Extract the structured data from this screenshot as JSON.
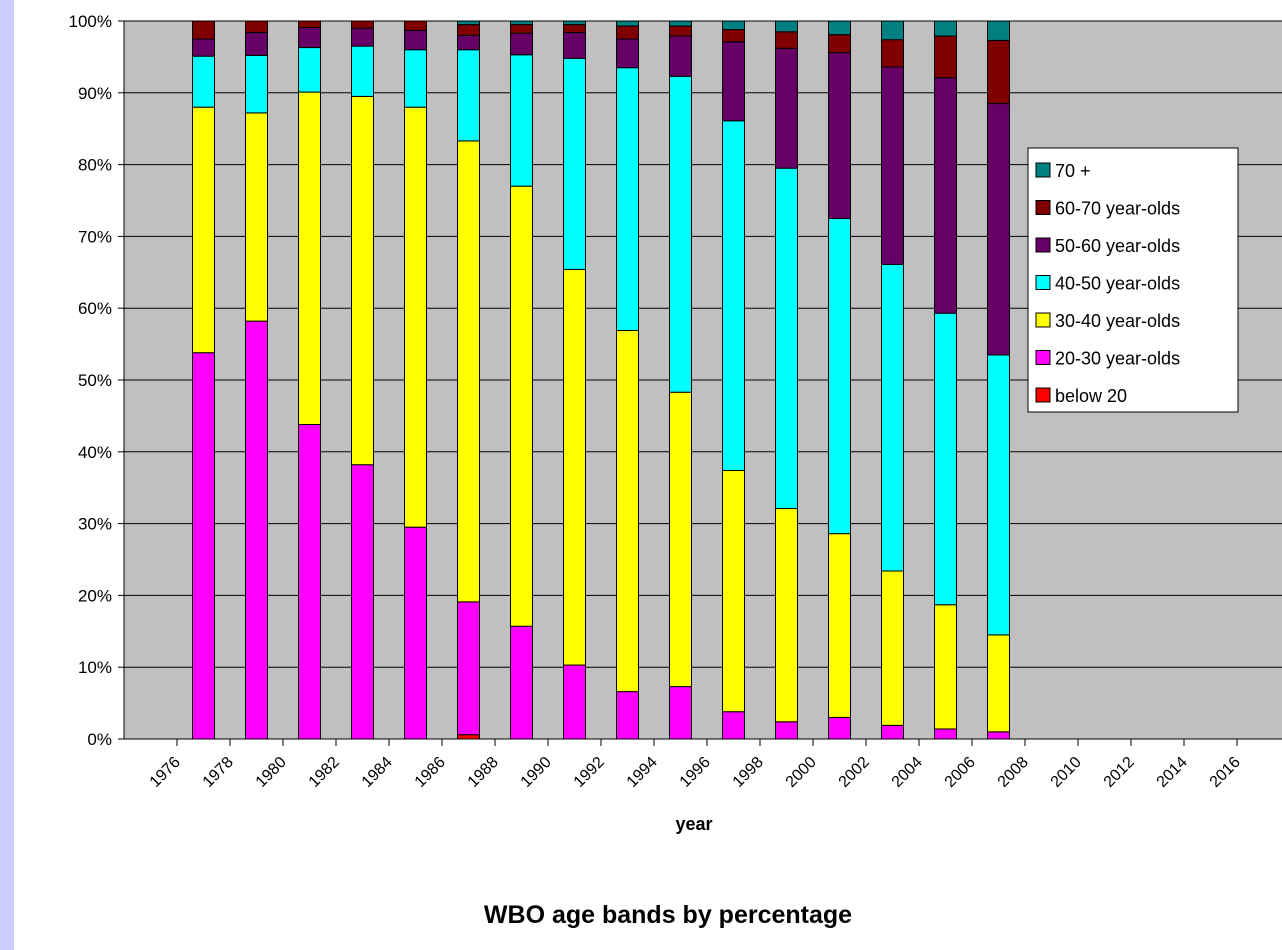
{
  "chart_data": {
    "type": "bar",
    "stacked": true,
    "normalized_percent": true,
    "title": "WBO age bands by percentage",
    "xlabel": "year",
    "ylabel": "",
    "ylim": [
      0,
      100
    ],
    "y_ticks": [
      "0%",
      "10%",
      "20%",
      "30%",
      "40%",
      "50%",
      "60%",
      "70%",
      "80%",
      "90%",
      "100%"
    ],
    "x_ticks": [
      "1976",
      "1978",
      "1980",
      "1982",
      "1984",
      "1986",
      "1988",
      "1990",
      "1992",
      "1994",
      "1996",
      "1998",
      "2000",
      "2002",
      "2004",
      "2006",
      "2008",
      "2010",
      "2012",
      "2014",
      "2016"
    ],
    "x_range": [
      1976,
      2016
    ],
    "grid": "horizontal",
    "legend_position": "right",
    "plot_background": "#c0c0c0",
    "categories": [
      1977,
      1979,
      1981,
      1983,
      1985,
      1987,
      1989,
      1991,
      1993,
      1995,
      1997,
      1999,
      2001,
      2003,
      2005,
      2007
    ],
    "series": [
      {
        "name": "below 20",
        "color": "#ff0000",
        "values": [
          0,
          0,
          0,
          0,
          0,
          0.6,
          0,
          0,
          0,
          0,
          0,
          0,
          0,
          0,
          0,
          0
        ]
      },
      {
        "name": "20-30 year-olds",
        "color": "#ff00ff",
        "values": [
          53.8,
          58.2,
          43.8,
          38.2,
          29.5,
          18.5,
          15.7,
          10.3,
          6.6,
          7.3,
          3.8,
          2.4,
          3.0,
          1.9,
          1.4,
          1.0
        ]
      },
      {
        "name": "30-40 year-olds",
        "color": "#ffff00",
        "values": [
          34.2,
          29.0,
          46.3,
          51.3,
          58.5,
          64.2,
          61.3,
          55.1,
          50.3,
          41.0,
          33.6,
          29.7,
          25.6,
          21.5,
          17.3,
          13.5
        ]
      },
      {
        "name": "40-50 year-olds",
        "color": "#00ffff",
        "values": [
          7.1,
          8.0,
          6.2,
          7.0,
          8.0,
          12.7,
          18.3,
          29.4,
          36.6,
          44.0,
          48.7,
          47.4,
          43.9,
          42.7,
          40.6,
          39.0
        ]
      },
      {
        "name": "50-60 year-olds",
        "color": "#660066",
        "values": [
          2.4,
          3.2,
          2.8,
          2.5,
          2.7,
          2.0,
          3.0,
          3.6,
          4.0,
          5.6,
          11.0,
          16.7,
          23.1,
          27.5,
          32.8,
          35.0
        ]
      },
      {
        "name": "60-70 year-olds",
        "color": "#800000",
        "values": [
          2.5,
          1.6,
          0.9,
          1.0,
          1.3,
          1.5,
          1.2,
          1.1,
          1.8,
          1.4,
          1.7,
          2.3,
          2.5,
          3.8,
          5.8,
          8.8
        ]
      },
      {
        "name": "70 +",
        "color": "#008080",
        "values": [
          0,
          0,
          0,
          0,
          0,
          0.5,
          0.5,
          0.5,
          0.7,
          0.7,
          1.2,
          1.5,
          1.9,
          2.6,
          2.1,
          2.7
        ]
      }
    ]
  }
}
